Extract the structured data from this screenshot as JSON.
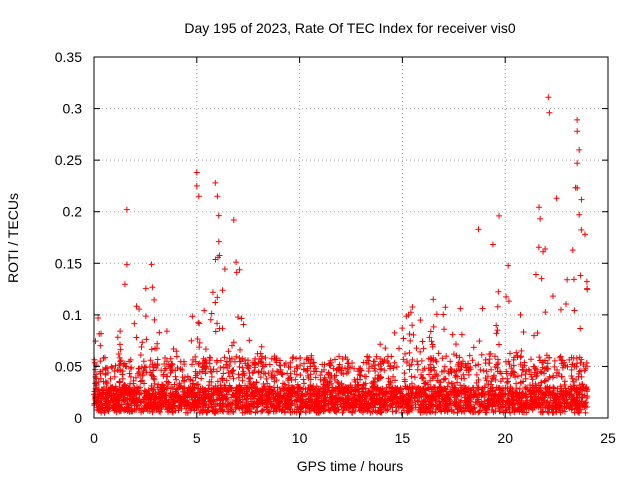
{
  "chart_data": {
    "type": "scatter",
    "title": "Day 195 of 2023, Rate Of TEC Index for receiver vis0",
    "xlabel": "GPS time / hours",
    "ylabel": "ROTI / TECUs",
    "xlim": [
      0,
      25
    ],
    "ylim": [
      0,
      0.35
    ],
    "x_ticks": [
      0,
      5,
      10,
      15,
      20,
      25
    ],
    "y_ticks": [
      0,
      0.05,
      0.1,
      0.15,
      0.2,
      0.25,
      0.3,
      0.35
    ],
    "x_tick_labels": [
      "0",
      "5",
      "10",
      "15",
      "20",
      "25"
    ],
    "y_tick_labels": [
      "0",
      "0.05",
      "0.1",
      "0.15",
      "0.2",
      "0.25",
      "0.3",
      "0.35"
    ],
    "grid": true,
    "marker": "+",
    "color": "#ff0000",
    "notable_points": [
      {
        "x": 1.6,
        "y": 0.202
      },
      {
        "x": 5.0,
        "y": 0.238
      },
      {
        "x": 5.0,
        "y": 0.225
      },
      {
        "x": 5.1,
        "y": 0.215
      },
      {
        "x": 5.9,
        "y": 0.228
      },
      {
        "x": 6.0,
        "y": 0.215
      },
      {
        "x": 6.8,
        "y": 0.192
      },
      {
        "x": 22.1,
        "y": 0.311
      },
      {
        "x": 22.15,
        "y": 0.296
      },
      {
        "x": 22.5,
        "y": 0.213
      },
      {
        "x": 23.5,
        "y": 0.289
      },
      {
        "x": 23.5,
        "y": 0.278
      },
      {
        "x": 23.6,
        "y": 0.26
      },
      {
        "x": 23.5,
        "y": 0.247
      },
      {
        "x": 23.5,
        "y": 0.223
      },
      {
        "x": 23.6,
        "y": 0.197
      },
      {
        "x": 19.7,
        "y": 0.196
      },
      {
        "x": 21.7,
        "y": 0.193
      },
      {
        "x": 18.7,
        "y": 0.183
      },
      {
        "x": 0.2,
        "y": 0.097
      },
      {
        "x": 2.8,
        "y": 0.149
      },
      {
        "x": 1.6,
        "y": 0.149
      },
      {
        "x": 16.5,
        "y": 0.115
      },
      {
        "x": 15.3,
        "y": 0.1
      }
    ],
    "envelope_hours": [
      0,
      0.5,
      1,
      1.5,
      2,
      2.5,
      3,
      3.5,
      4,
      4.5,
      5,
      5.5,
      6,
      6.5,
      7,
      7.5,
      8,
      8.5,
      9,
      9.5,
      10,
      10.5,
      11,
      11.5,
      12,
      12.5,
      13,
      13.5,
      14,
      14.5,
      15,
      15.5,
      16,
      16.5,
      17,
      17.5,
      18,
      18.5,
      19,
      19.5,
      20,
      20.5,
      21,
      21.5,
      22,
      22.5,
      23,
      23.5,
      24
    ],
    "envelope_roti": [
      0.09,
      0.07,
      0.06,
      0.12,
      0.1,
      0.14,
      0.13,
      0.08,
      0.06,
      0.04,
      0.2,
      0.08,
      0.2,
      0.12,
      0.15,
      0.07,
      0.06,
      0.07,
      0.05,
      0.06,
      0.05,
      0.06,
      0.04,
      0.05,
      0.06,
      0.05,
      0.04,
      0.06,
      0.07,
      0.08,
      0.09,
      0.1,
      0.1,
      0.11,
      0.1,
      0.09,
      0.1,
      0.14,
      0.17,
      0.16,
      0.18,
      0.1,
      0.11,
      0.17,
      0.28,
      0.15,
      0.13,
      0.25,
      0.16
    ]
  }
}
